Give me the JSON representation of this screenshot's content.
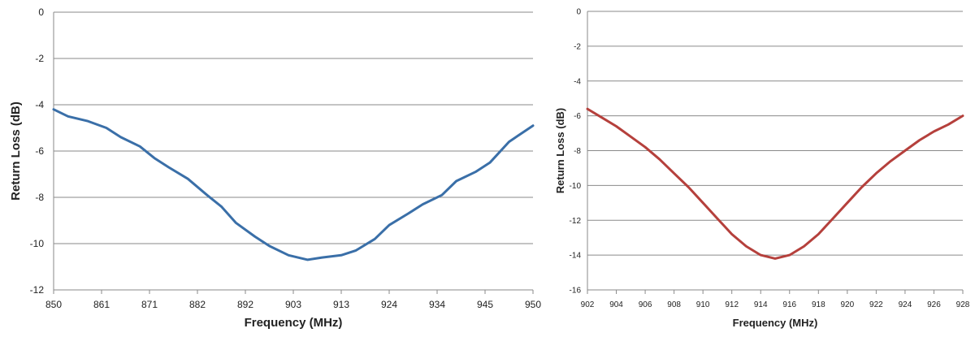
{
  "chart_data": [
    {
      "type": "line",
      "title": "",
      "xlabel": "Frequency  (MHz)",
      "ylabel": "Return Loss (dB)",
      "ylim": [
        -12,
        0
      ],
      "yticks": [
        "0",
        "-2",
        "-4",
        "-6",
        "-8",
        "-10",
        "-12"
      ],
      "categories": [
        "850",
        "861",
        "871",
        "882",
        "892",
        "903",
        "913",
        "924",
        "934",
        "945",
        "950"
      ],
      "grid": true,
      "legend": "none",
      "series": [
        {
          "color": "#3a6fa8",
          "x": [
            850,
            853,
            857,
            861,
            864,
            868,
            871,
            874,
            878,
            882,
            885,
            888,
            892,
            895,
            899,
            903,
            906,
            910,
            913,
            917,
            920,
            924,
            927,
            931,
            934,
            938,
            941,
            945,
            950
          ],
          "values": [
            -4.2,
            -4.5,
            -4.7,
            -5.0,
            -5.4,
            -5.8,
            -6.3,
            -6.7,
            -7.2,
            -7.9,
            -8.4,
            -9.1,
            -9.7,
            -10.1,
            -10.5,
            -10.7,
            -10.6,
            -10.5,
            -10.3,
            -9.8,
            -9.2,
            -8.7,
            -8.3,
            -7.9,
            -7.3,
            -6.9,
            -6.5,
            -5.6,
            -4.9
          ]
        }
      ]
    },
    {
      "type": "line",
      "title": "",
      "xlabel": "Frequency (MHz)",
      "ylabel": "Return Loss (dB)",
      "ylim": [
        -16,
        0
      ],
      "yticks": [
        "0",
        "-2",
        "-4",
        "-6",
        "-8",
        "-10",
        "-12",
        "-14",
        "-16"
      ],
      "categories": [
        "902",
        "904",
        "906",
        "908",
        "910",
        "912",
        "914",
        "916",
        "918",
        "920",
        "922",
        "924",
        "926",
        "928"
      ],
      "grid": true,
      "legend": "none",
      "series": [
        {
          "color": "#b5403c",
          "x": [
            902,
            903,
            904,
            905,
            906,
            907,
            908,
            909,
            910,
            911,
            912,
            913,
            914,
            915,
            916,
            917,
            918,
            919,
            920,
            921,
            922,
            923,
            924,
            925,
            926,
            927,
            928
          ],
          "values": [
            -5.6,
            -6.1,
            -6.6,
            -7.2,
            -7.8,
            -8.5,
            -9.3,
            -10.1,
            -11.0,
            -11.9,
            -12.8,
            -13.5,
            -14.0,
            -14.2,
            -14.0,
            -13.5,
            -12.8,
            -11.9,
            -11.0,
            -10.1,
            -9.3,
            -8.6,
            -8.0,
            -7.4,
            -6.9,
            -6.5,
            -6.0
          ]
        }
      ]
    }
  ]
}
